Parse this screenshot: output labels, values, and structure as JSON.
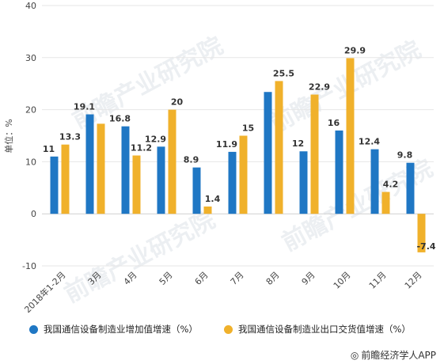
{
  "chart_data": {
    "type": "bar",
    "ylabel": "单位：%",
    "ylim": [
      -10,
      40
    ],
    "yticks": [
      -10,
      0,
      10,
      20,
      30,
      40
    ],
    "grid": true,
    "legend_position": "bottom",
    "categories": [
      "2018年1-2月",
      "3月",
      "4月",
      "5月",
      "6月",
      "7月",
      "8月",
      "9月",
      "10月",
      "11月",
      "12月"
    ],
    "series": [
      {
        "name": "我国通信设备制造业增加值增速（%）",
        "color": "#1f77c4",
        "values": [
          11,
          19.1,
          16.8,
          12.9,
          8.9,
          11.9,
          23.4,
          12,
          16,
          12.4,
          9.8
        ],
        "labels": [
          "11",
          "19.1",
          "16.8",
          "12.9",
          "8.9",
          "11.9",
          "",
          "12",
          "16",
          "12.4",
          "9.8"
        ]
      },
      {
        "name": "我国通信设备制造业出口交货值增速（%）",
        "color": "#f0b12b",
        "values": [
          13.3,
          17.3,
          11.2,
          20,
          1.4,
          15,
          25.5,
          22.9,
          29.9,
          4.2,
          -7.4
        ],
        "labels": [
          "13.3",
          "",
          "11.2",
          "20",
          "1.4",
          "15",
          "25.5",
          "22.9",
          "29.9",
          "4.2",
          "-7.4"
        ]
      }
    ]
  },
  "footer": {
    "icon": "wechat-icon",
    "text": "前瞻经济学人APP"
  },
  "watermark": {
    "text": "前瞻产业研究院"
  }
}
